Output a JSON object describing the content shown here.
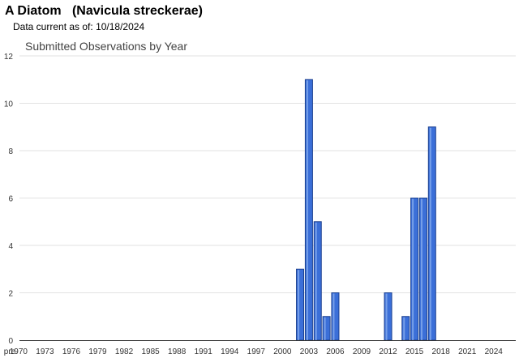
{
  "header": {
    "title": "A Diatom   (Navicula streckerae)",
    "subtitle_prefix": "Data current as of:",
    "date": "10/18/2024"
  },
  "colors": {
    "bar_fill": "#3b6fd8",
    "bar_stroke": "#1a3f8f",
    "grid": "#e2e2e2",
    "axis": "#333333",
    "text": "#333333",
    "chart_title": "#444444"
  },
  "chart_data": {
    "type": "bar",
    "title": "Submitted Observations by Year",
    "xlabel": "",
    "ylabel": "",
    "ylim": [
      0,
      12
    ],
    "yticks": [
      "0",
      "2",
      "4",
      "6",
      "8",
      "10",
      "12"
    ],
    "grid": true,
    "legend": "none",
    "categories": [
      "pre 1970",
      "1970",
      "1971",
      "1972",
      "1973",
      "1974",
      "1975",
      "1976",
      "1977",
      "1978",
      "1979",
      "1980",
      "1981",
      "1982",
      "1983",
      "1984",
      "1985",
      "1986",
      "1987",
      "1988",
      "1989",
      "1990",
      "1991",
      "1992",
      "1993",
      "1994",
      "1995",
      "1996",
      "1997",
      "1998",
      "1999",
      "2000",
      "2001",
      "2002",
      "2003",
      "2004",
      "2005",
      "2006",
      "2007",
      "2008",
      "2009",
      "2010",
      "2011",
      "2012",
      "2013",
      "2014",
      "2015",
      "2016",
      "2017",
      "2018",
      "2019",
      "2020",
      "2021",
      "2022",
      "2023",
      "2024"
    ],
    "values": [
      0,
      0,
      0,
      0,
      0,
      0,
      0,
      0,
      0,
      0,
      0,
      0,
      0,
      0,
      0,
      0,
      0,
      0,
      0,
      0,
      0,
      0,
      0,
      0,
      0,
      0,
      0,
      0,
      0,
      0,
      0,
      0,
      0,
      3,
      11,
      5,
      1,
      2,
      0,
      0,
      0,
      0,
      0,
      2,
      0,
      1,
      6,
      6,
      9,
      0,
      0,
      0,
      0,
      0,
      0,
      0
    ],
    "xtick_labels": [
      "pre",
      "1970",
      "1973",
      "1976",
      "1979",
      "1982",
      "1985",
      "1988",
      "1991",
      "1994",
      "1997",
      "2000",
      "2003",
      "2006",
      "2009",
      "2012",
      "2015",
      "2018",
      "2021",
      "2024"
    ]
  }
}
